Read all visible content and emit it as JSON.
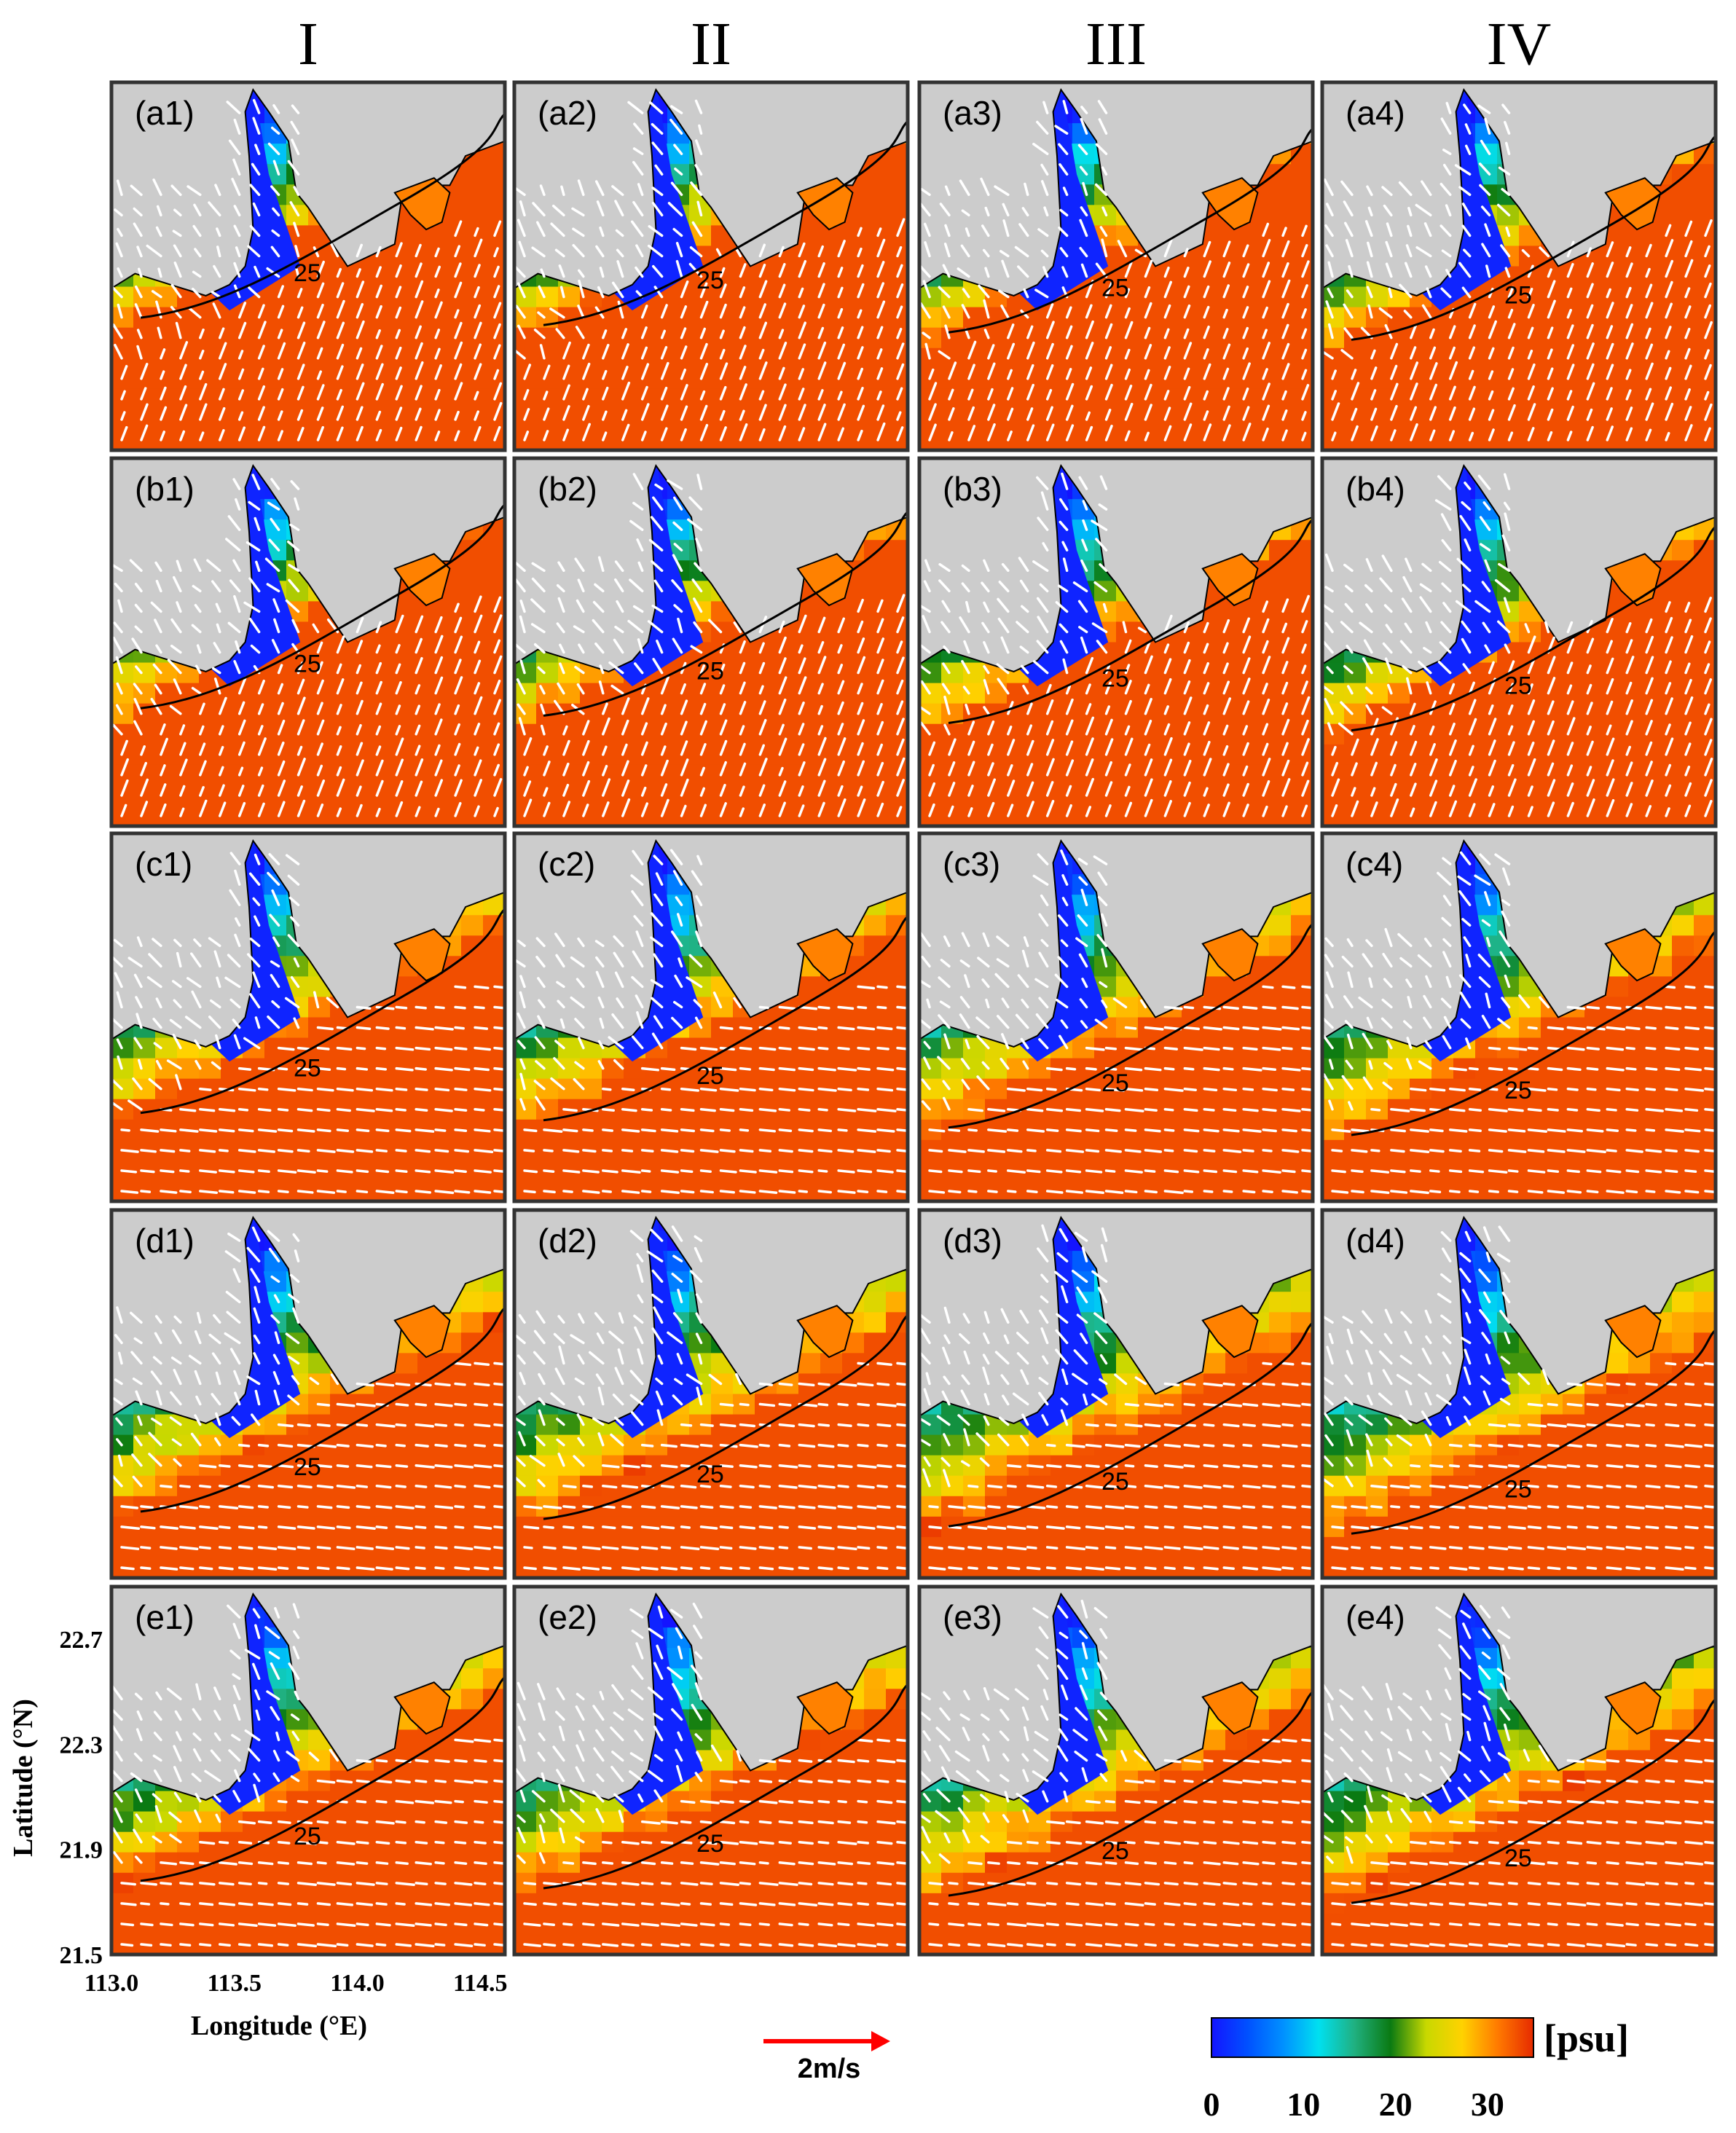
{
  "chart_data": {
    "type": "heatmap",
    "description_variable": "salinity",
    "columns": [
      "I",
      "II",
      "III",
      "IV"
    ],
    "rows": [
      "a",
      "b",
      "c",
      "d",
      "e"
    ],
    "panels": [
      [
        "(a1)",
        "(a2)",
        "(a3)",
        "(a4)"
      ],
      [
        "(b1)",
        "(b2)",
        "(b3)",
        "(b4)"
      ],
      [
        "(c1)",
        "(c2)",
        "(c3)",
        "(c4)"
      ],
      [
        "(d1)",
        "(d2)",
        "(d3)",
        "(d4)"
      ],
      [
        "(e1)",
        "(e2)",
        "(e3)",
        "(e4)"
      ]
    ],
    "contour_level": 25,
    "contour_label": "25",
    "xlabel": "Longitude (°E)",
    "ylabel": "Latitude (°N)",
    "xticks": [
      "113.0",
      "113.5",
      "114.0",
      "114.5"
    ],
    "xlim": [
      113.0,
      114.6
    ],
    "yticks": [
      "21.5",
      "21.9",
      "22.3",
      "22.7"
    ],
    "ylim": [
      21.5,
      22.9
    ],
    "colorbar": {
      "unit": "[psu]",
      "ticks": [
        "0",
        "10",
        "20",
        "30"
      ],
      "range": [
        0,
        35
      ],
      "colors": [
        "#1414ff",
        "#0050ff",
        "#0090ff",
        "#00e0f0",
        "#20b080",
        "#0a7a12",
        "#c8d800",
        "#ffd200",
        "#ff7a00",
        "#e62a00"
      ]
    },
    "land_color": "#cccccc",
    "vector_color": "#ffffff",
    "reference_vector": {
      "label": "2m/s",
      "color": "#ff0000"
    }
  }
}
